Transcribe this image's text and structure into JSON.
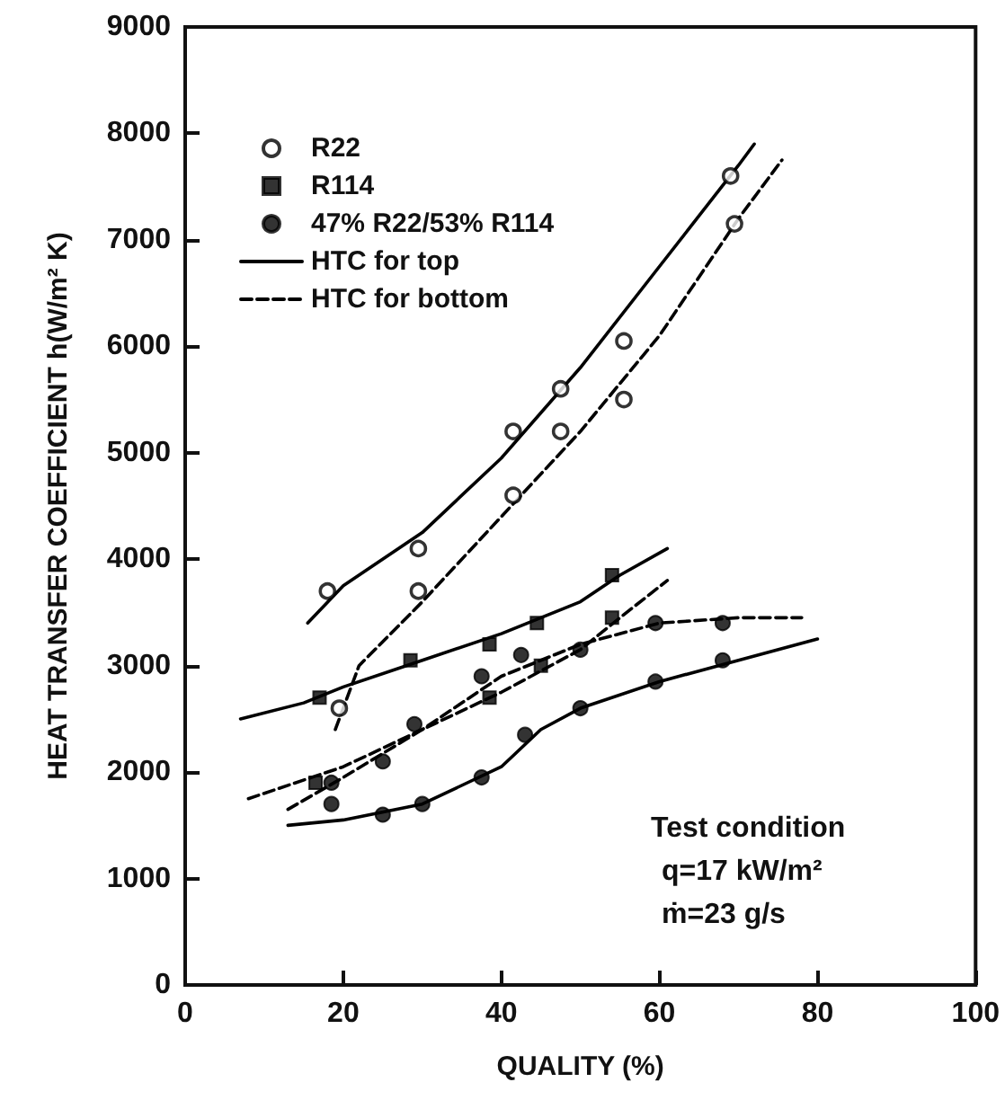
{
  "chart_data": {
    "type": "scatter",
    "xlabel": "QUALITY (%)",
    "ylabel": "HEAT TRANSFER COEFFICIENT h(W/m² K)",
    "xlim": [
      0,
      100
    ],
    "xticks": [
      0,
      20,
      40,
      60,
      80,
      100
    ],
    "ylim": [
      0,
      9000
    ],
    "yticks": [
      0,
      1000,
      2000,
      3000,
      4000,
      5000,
      6000,
      7000,
      8000,
      9000
    ],
    "grid": false,
    "legend": "top left",
    "annotations": [
      "Test condition",
      "q=17 kW/m²",
      "ṁ=23 g/s"
    ],
    "series": [
      {
        "name": "R22",
        "marker": "circle",
        "color": "#000000",
        "x": [
          18,
          29.5,
          41.5,
          47.5,
          55.5,
          69,
          19.5,
          29.5,
          41.5,
          47.5,
          55.5,
          69.5
        ],
        "values": [
          3700,
          4100,
          5200,
          5600,
          6050,
          7600,
          2600,
          3700,
          4600,
          5200,
          5500,
          7150
        ]
      },
      {
        "name": "R114",
        "marker": "square",
        "color": "#000000",
        "x": [
          17,
          28.5,
          38.5,
          44.5,
          54,
          16.5,
          38.5,
          45,
          54
        ],
        "values": [
          2700,
          3050,
          3200,
          3400,
          3850,
          1900,
          2700,
          3000,
          3450
        ]
      },
      {
        "name": "47% R22/53% R114",
        "marker": "circle",
        "color": "#000000",
        "x": [
          18.5,
          25,
          30,
          37.5,
          43,
          50,
          59.5,
          68,
          18.5,
          25,
          29,
          37.5,
          42.5,
          50,
          59.5,
          68
        ],
        "values": [
          1700,
          1600,
          1700,
          1950,
          2350,
          2600,
          2850,
          3050,
          1900,
          2100,
          2450,
          2900,
          3100,
          3150,
          3400,
          3400
        ]
      },
      {
        "name": "HTC for top",
        "type": "line",
        "line_style": "solid",
        "marker": "none",
        "color": "#000000",
        "x": [
          15.5,
          20,
          30,
          40,
          50,
          60,
          70,
          72
        ],
        "values": [
          3400,
          3750,
          4250,
          4950,
          5800,
          6750,
          7700,
          7900
        ]
      },
      {
        "name": "HTC for bottom",
        "type": "line",
        "line_style": "dashed",
        "marker": "none",
        "color": "#000000",
        "x": [
          19,
          22,
          30,
          40,
          50,
          60,
          70,
          75.5
        ],
        "values": [
          2400,
          3000,
          3600,
          4400,
          5200,
          6100,
          7200,
          7750
        ]
      },
      {
        "type": "line",
        "line_style": "solid",
        "marker": "none",
        "color": "#000000",
        "x": [
          7,
          15,
          20,
          30,
          40,
          50,
          55,
          61
        ],
        "values": [
          2500,
          2650,
          2800,
          3050,
          3300,
          3600,
          3850,
          4100
        ]
      },
      {
        "type": "line",
        "line_style": "dashed",
        "marker": "none",
        "color": "#000000",
        "x": [
          13,
          20,
          30,
          40,
          50,
          55,
          61
        ],
        "values": [
          1650,
          1950,
          2400,
          2750,
          3150,
          3450,
          3800
        ]
      },
      {
        "type": "line",
        "line_style": "solid",
        "marker": "none",
        "color": "#000000",
        "x": [
          13,
          20,
          30,
          40,
          45,
          50,
          60,
          70,
          80
        ],
        "values": [
          1500,
          1550,
          1700,
          2050,
          2400,
          2600,
          2850,
          3050,
          3250
        ]
      },
      {
        "type": "line",
        "line_style": "dashed",
        "marker": "none",
        "color": "#000000",
        "x": [
          8,
          20,
          30,
          40,
          50,
          60,
          70,
          78
        ],
        "values": [
          1750,
          2050,
          2400,
          2900,
          3200,
          3400,
          3450,
          3450
        ]
      }
    ]
  }
}
